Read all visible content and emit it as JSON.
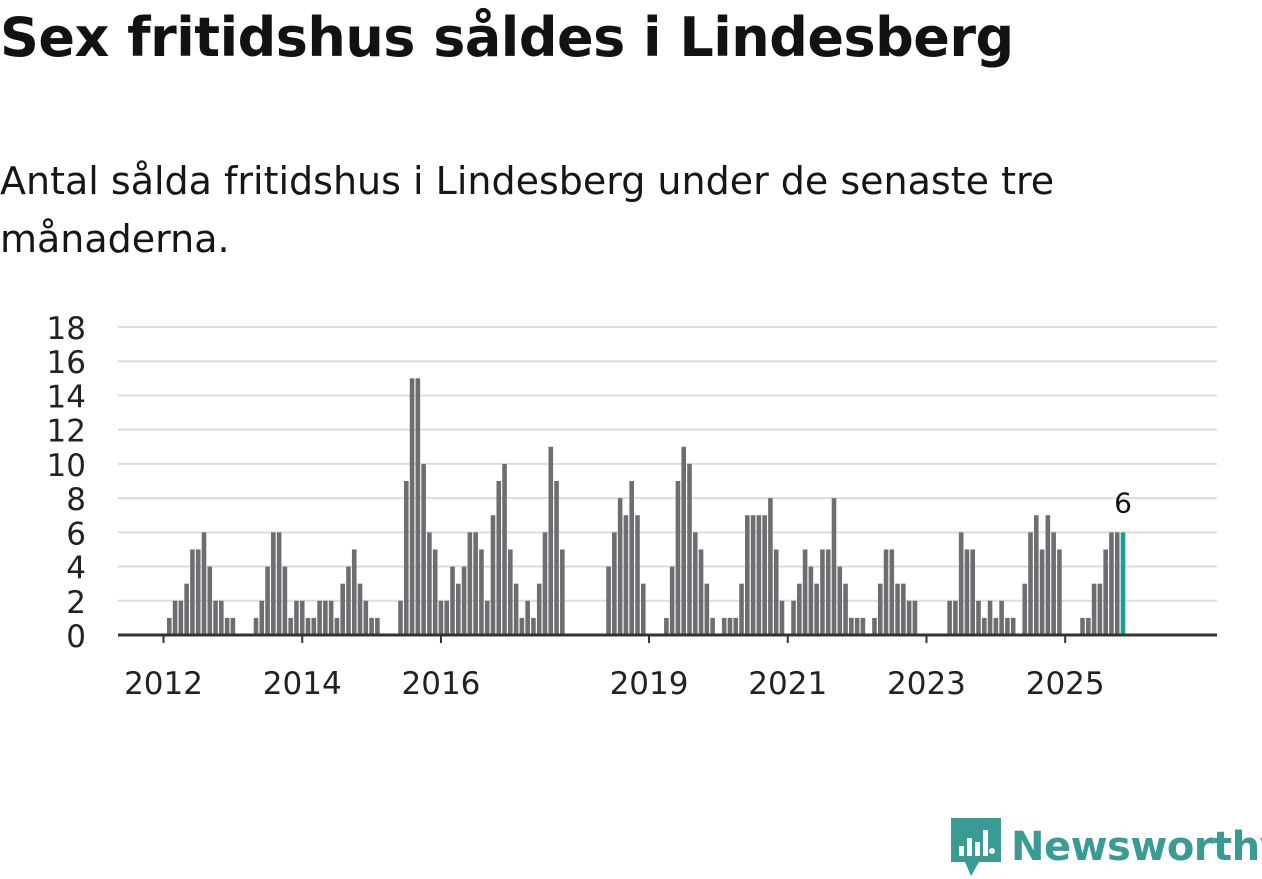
{
  "title": "Sex fritidshus såldes i Lindesberg",
  "subtitle": "Antal sålda fritidshus i Lindesberg under de senaste tre månaderna.",
  "brand": {
    "name": "Newsworthy",
    "icon": "newsworthy-logo-icon",
    "color": "#3a9a94"
  },
  "colors": {
    "bar": "#6e6d71",
    "highlight": "#1d9e93",
    "grid": "#dddddd",
    "axis": "#333333"
  },
  "chart_data": {
    "type": "bar",
    "title": "Sex fritidshus såldes i Lindesberg",
    "xlabel": "",
    "ylabel": "",
    "ylim": [
      0,
      18
    ],
    "yticks": [
      0,
      2,
      4,
      6,
      8,
      10,
      12,
      14,
      16,
      18
    ],
    "grid": true,
    "legend": "none",
    "start": "2011-06",
    "unit": "month",
    "xticks": [
      {
        "label": "2012",
        "index": 7
      },
      {
        "label": "2014",
        "index": 31
      },
      {
        "label": "2016",
        "index": 55
      },
      {
        "label": "2019",
        "index": 91
      },
      {
        "label": "2021",
        "index": 115
      },
      {
        "label": "2023",
        "index": 139
      },
      {
        "label": "2025",
        "index": 163
      }
    ],
    "highlight_index": 173,
    "highlight_label": "6",
    "values": [
      null,
      null,
      null,
      null,
      null,
      null,
      null,
      null,
      1,
      2,
      2,
      3,
      5,
      5,
      6,
      4,
      2,
      2,
      1,
      1,
      null,
      null,
      null,
      1,
      2,
      4,
      6,
      6,
      4,
      1,
      2,
      2,
      1,
      1,
      2,
      2,
      2,
      1,
      3,
      4,
      5,
      3,
      2,
      1,
      1,
      null,
      null,
      null,
      2,
      9,
      15,
      15,
      10,
      6,
      5,
      2,
      2,
      4,
      3,
      4,
      6,
      6,
      5,
      2,
      7,
      9,
      10,
      5,
      3,
      1,
      2,
      1,
      3,
      6,
      11,
      9,
      5,
      null,
      null,
      null,
      null,
      null,
      null,
      null,
      4,
      6,
      8,
      7,
      9,
      7,
      3,
      null,
      null,
      null,
      1,
      4,
      9,
      11,
      10,
      6,
      5,
      3,
      1,
      null,
      1,
      1,
      1,
      3,
      7,
      7,
      7,
      7,
      8,
      5,
      2,
      null,
      2,
      3,
      5,
      4,
      3,
      5,
      5,
      8,
      4,
      3,
      1,
      1,
      1,
      null,
      1,
      3,
      5,
      5,
      3,
      3,
      2,
      2,
      null,
      null,
      null,
      null,
      null,
      2,
      2,
      6,
      5,
      5,
      2,
      1,
      2,
      1,
      2,
      1,
      1,
      null,
      3,
      6,
      7,
      5,
      7,
      6,
      5,
      null,
      null,
      null,
      1,
      1,
      3,
      3,
      5,
      6,
      6,
      6
    ]
  }
}
